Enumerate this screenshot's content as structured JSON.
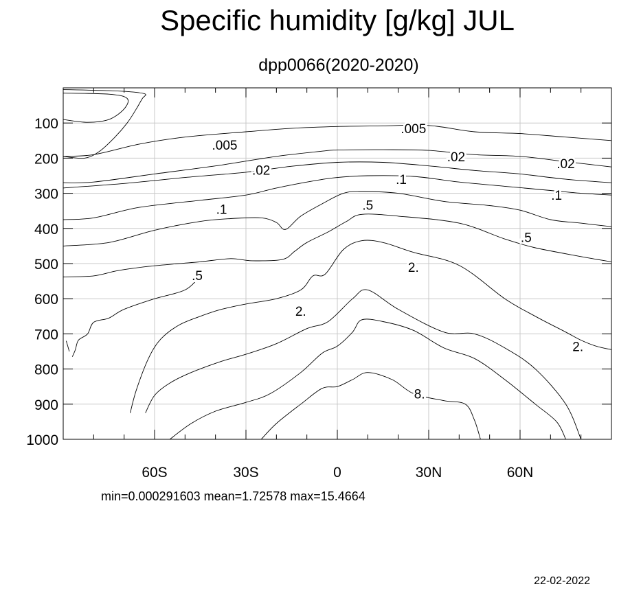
{
  "chart_data": {
    "type": "contour",
    "title": "Specific humidity [g/kg] JUL",
    "subtitle": "dpp0066(2020-2020)",
    "x": {
      "range": [
        -90,
        90
      ],
      "ticks": [
        -60,
        -30,
        0,
        30,
        60
      ],
      "tick_labels": [
        "60S",
        "30S",
        "0",
        "30N",
        "60N"
      ]
    },
    "y": {
      "range": [
        0,
        1000
      ],
      "reversed": true,
      "ticks": [
        100,
        200,
        300,
        400,
        500,
        600,
        700,
        800,
        900,
        1000
      ],
      "tick_labels": [
        "100",
        "200",
        "300",
        "400",
        "500",
        "600",
        "700",
        "800",
        "900",
        "1000"
      ]
    },
    "grid": true,
    "stats_text": "min=0.000291603   mean=1.72578   max=15.4664",
    "date_text": "22-02-2022",
    "contour_labels": [
      {
        "text": ".005",
        "lat": -37,
        "p": 162
      },
      {
        "text": ".005",
        "lat": 25,
        "p": 115
      },
      {
        "text": ".02",
        "lat": -25,
        "p": 233
      },
      {
        "text": ".02",
        "lat": 39,
        "p": 195
      },
      {
        "text": ".02",
        "lat": 75,
        "p": 215
      },
      {
        "text": ".1",
        "lat": 21,
        "p": 260
      },
      {
        "text": ".1",
        "lat": 72,
        "p": 305
      },
      {
        "text": ".1",
        "lat": -38,
        "p": 345
      },
      {
        "text": ".5",
        "lat": 10,
        "p": 333
      },
      {
        "text": ".5",
        "lat": 62,
        "p": 425
      },
      {
        "text": ".5",
        "lat": -46,
        "p": 533
      },
      {
        "text": "2.",
        "lat": 25,
        "p": 510
      },
      {
        "text": "2.",
        "lat": -12,
        "p": 635
      },
      {
        "text": "2.",
        "lat": 79,
        "p": 735
      },
      {
        "text": "8.",
        "lat": 27,
        "p": 870
      }
    ],
    "contours": [
      {
        "level": "cap",
        "points": [
          [
            -90,
            5
          ],
          [
            -75,
            8
          ],
          [
            -67,
            12
          ],
          [
            -63,
            18
          ],
          [
            -64,
            30
          ],
          [
            -66,
            60
          ],
          [
            -69,
            100
          ],
          [
            -73,
            140
          ],
          [
            -78,
            180
          ],
          [
            -83,
            200
          ],
          [
            -90,
            195
          ]
        ]
      },
      {
        "level": "cap_inner",
        "points": [
          [
            -90,
            90
          ],
          [
            -82,
            98
          ],
          [
            -75,
            90
          ],
          [
            -70,
            60
          ],
          [
            -69,
            30
          ],
          [
            -75,
            18
          ],
          [
            -90,
            15
          ]
        ]
      },
      {
        "level": "0.005",
        "points": [
          [
            -90,
            195
          ],
          [
            -80,
            190
          ],
          [
            -65,
            160
          ],
          [
            -50,
            140
          ],
          [
            -30,
            125
          ],
          [
            -15,
            115
          ],
          [
            0,
            110
          ],
          [
            15,
            108
          ],
          [
            30,
            107
          ],
          [
            45,
            125
          ],
          [
            60,
            130
          ],
          [
            75,
            140
          ],
          [
            90,
            150
          ]
        ]
      },
      {
        "level": "0.02",
        "points": [
          [
            -90,
            270
          ],
          [
            -80,
            268
          ],
          [
            -60,
            245
          ],
          [
            -40,
            222
          ],
          [
            -20,
            195
          ],
          [
            -5,
            180
          ],
          [
            0,
            177
          ],
          [
            15,
            176
          ],
          [
            30,
            178
          ],
          [
            45,
            190
          ],
          [
            60,
            195
          ],
          [
            75,
            210
          ],
          [
            90,
            225
          ]
        ]
      },
      {
        "level": "0.02b",
        "points": [
          [
            -90,
            285
          ],
          [
            -70,
            272
          ],
          [
            -50,
            255
          ],
          [
            -30,
            240
          ],
          [
            -15,
            223
          ],
          [
            0,
            212
          ],
          [
            15,
            212
          ],
          [
            30,
            222
          ],
          [
            45,
            235
          ],
          [
            60,
            245
          ],
          [
            75,
            260
          ],
          [
            90,
            270
          ]
        ]
      },
      {
        "level": "0.1",
        "points": [
          [
            -90,
            375
          ],
          [
            -80,
            370
          ],
          [
            -65,
            340
          ],
          [
            -45,
            320
          ],
          [
            -30,
            305
          ],
          [
            -20,
            285
          ],
          [
            -8,
            265
          ],
          [
            0,
            255
          ],
          [
            10,
            250
          ],
          [
            25,
            252
          ],
          [
            40,
            268
          ],
          [
            55,
            280
          ],
          [
            70,
            292
          ],
          [
            80,
            300
          ],
          [
            90,
            305
          ]
        ]
      },
      {
        "level": "0.1b",
        "points": [
          [
            -90,
            450
          ],
          [
            -75,
            440
          ],
          [
            -60,
            405
          ],
          [
            -45,
            380
          ],
          [
            -35,
            372
          ],
          [
            -25,
            370
          ],
          [
            -20,
            383
          ],
          [
            -17,
            403
          ],
          [
            -12,
            365
          ],
          [
            -5,
            330
          ],
          [
            2,
            300
          ],
          [
            8,
            295
          ],
          [
            20,
            300
          ],
          [
            35,
            323
          ],
          [
            50,
            335
          ],
          [
            60,
            348
          ],
          [
            70,
            375
          ],
          [
            80,
            385
          ],
          [
            90,
            395
          ]
        ]
      },
      {
        "level": "0.5",
        "points": [
          [
            -90,
            538
          ],
          [
            -80,
            535
          ],
          [
            -72,
            520
          ],
          [
            -62,
            508
          ],
          [
            -52,
            500
          ],
          [
            -45,
            495
          ],
          [
            -35,
            486
          ],
          [
            -28,
            492
          ],
          [
            -18,
            488
          ],
          [
            -14,
            465
          ],
          [
            -10,
            440
          ],
          [
            -3,
            410
          ],
          [
            3,
            380
          ],
          [
            8,
            360
          ],
          [
            20,
            365
          ],
          [
            40,
            385
          ],
          [
            55,
            430
          ],
          [
            65,
            455
          ],
          [
            80,
            480
          ],
          [
            90,
            495
          ]
        ]
      },
      {
        "level": "0.5b",
        "points": [
          [
            -87,
            765
          ],
          [
            -86,
            745
          ],
          [
            -85,
            718
          ],
          [
            -82,
            700
          ],
          [
            -80,
            667
          ],
          [
            -75,
            655
          ],
          [
            -70,
            630
          ],
          [
            -60,
            600
          ],
          [
            -50,
            575
          ],
          [
            -45,
            535
          ]
        ]
      },
      {
        "level": "2",
        "points": [
          [
            -68,
            925
          ],
          [
            -66,
            860
          ],
          [
            -62,
            770
          ],
          [
            -58,
            715
          ],
          [
            -52,
            675
          ],
          [
            -45,
            650
          ],
          [
            -38,
            630
          ],
          [
            -30,
            615
          ],
          [
            -20,
            600
          ],
          [
            -12,
            575
          ],
          [
            -8,
            535
          ],
          [
            -4,
            530
          ],
          [
            2,
            460
          ],
          [
            8,
            435
          ],
          [
            15,
            440
          ],
          [
            25,
            468
          ],
          [
            40,
            505
          ],
          [
            55,
            600
          ],
          [
            65,
            650
          ],
          [
            75,
            695
          ],
          [
            80,
            718
          ],
          [
            85,
            735
          ],
          [
            90,
            745
          ]
        ]
      },
      {
        "level": "2b",
        "points": [
          [
            -63,
            925
          ],
          [
            -60,
            875
          ],
          [
            -55,
            840
          ],
          [
            -48,
            810
          ],
          [
            -38,
            778
          ],
          [
            -30,
            758
          ],
          [
            -20,
            728
          ],
          [
            -10,
            685
          ],
          [
            -3,
            665
          ],
          [
            5,
            600
          ],
          [
            10,
            575
          ],
          [
            20,
            630
          ],
          [
            35,
            695
          ],
          [
            45,
            700
          ],
          [
            55,
            740
          ],
          [
            65,
            800
          ],
          [
            75,
            900
          ],
          [
            80,
            1000
          ]
        ]
      },
      {
        "level": "4",
        "points": [
          [
            -55,
            1000
          ],
          [
            -48,
            955
          ],
          [
            -40,
            920
          ],
          [
            -30,
            895
          ],
          [
            -22,
            870
          ],
          [
            -12,
            810
          ],
          [
            -5,
            755
          ],
          [
            0,
            735
          ],
          [
            5,
            695
          ],
          [
            8,
            660
          ],
          [
            15,
            665
          ],
          [
            25,
            690
          ],
          [
            35,
            740
          ],
          [
            45,
            770
          ],
          [
            55,
            830
          ],
          [
            65,
            900
          ],
          [
            72,
            950
          ],
          [
            75,
            1000
          ]
        ]
      },
      {
        "level": "8",
        "points": [
          [
            -25,
            1000
          ],
          [
            -20,
            955
          ],
          [
            -12,
            900
          ],
          [
            -5,
            855
          ],
          [
            0,
            850
          ],
          [
            5,
            830
          ],
          [
            10,
            810
          ],
          [
            18,
            830
          ],
          [
            25,
            870
          ],
          [
            35,
            890
          ],
          [
            42,
            900
          ],
          [
            45,
            945
          ],
          [
            47,
            1000
          ]
        ]
      },
      {
        "level": "stub",
        "points": [
          [
            -88,
            750
          ],
          [
            -89,
            720
          ]
        ]
      }
    ]
  }
}
